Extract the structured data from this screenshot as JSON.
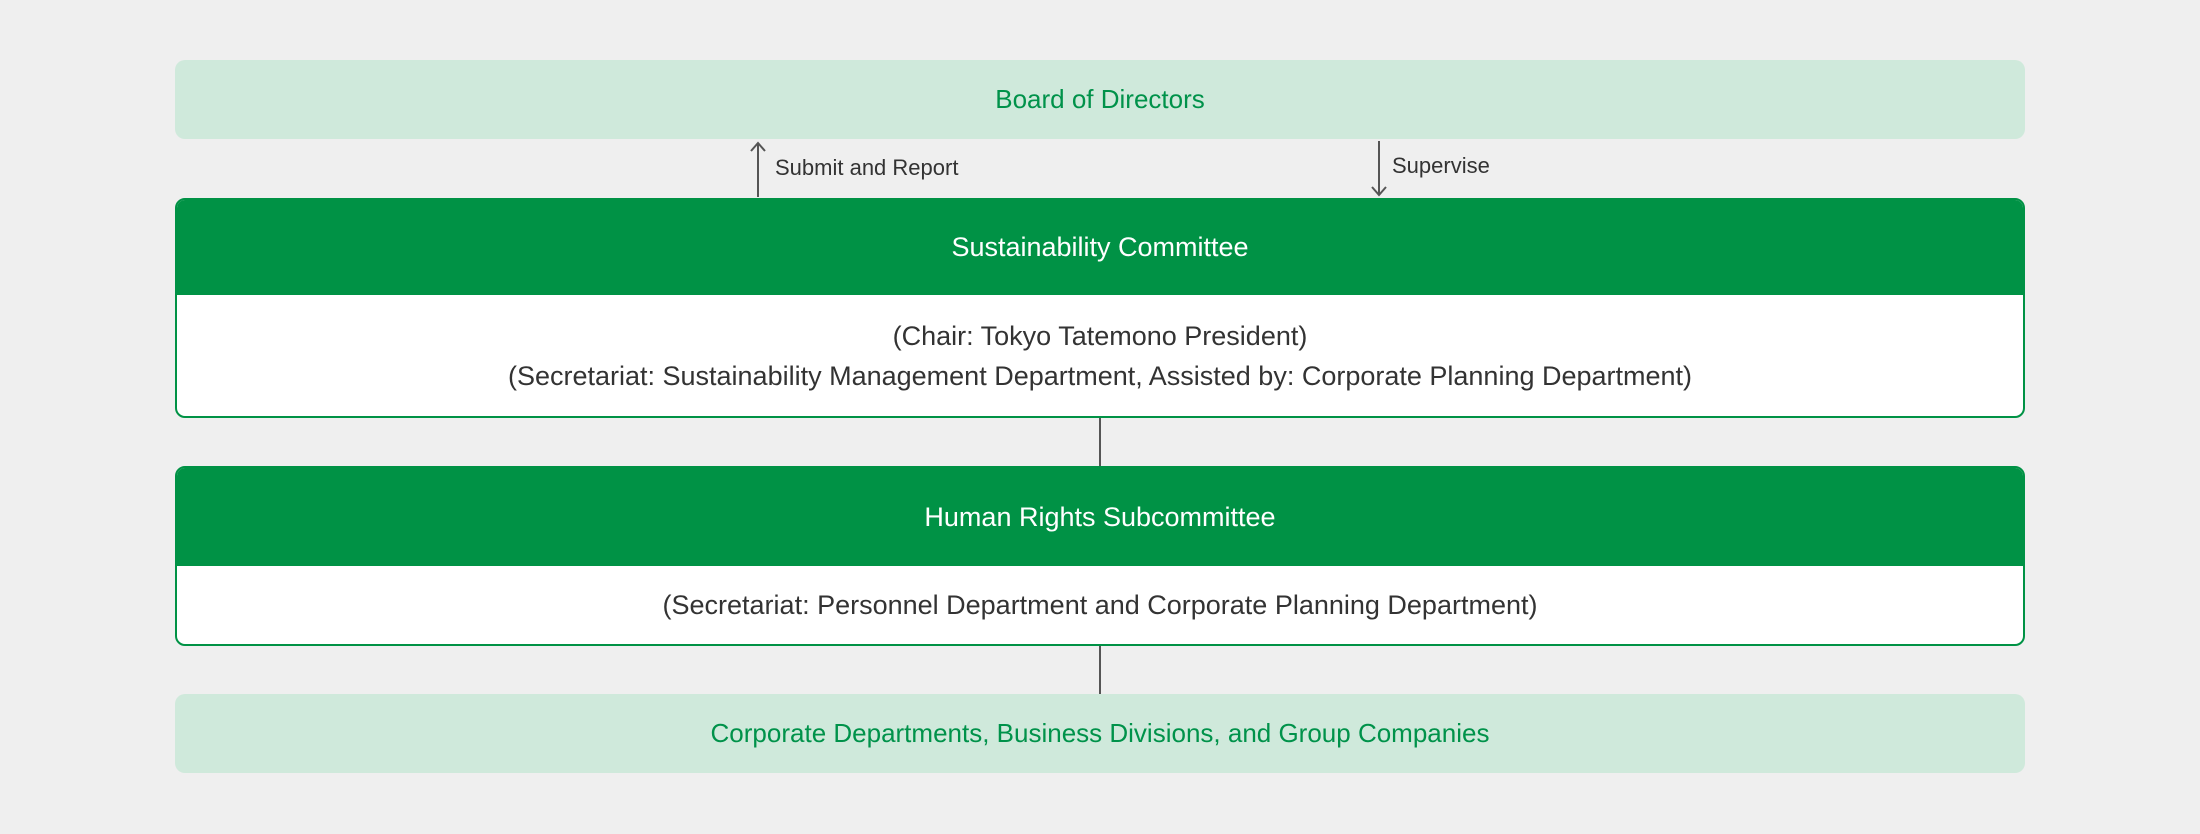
{
  "board": {
    "label": "Board of Directors"
  },
  "arrows": {
    "up_label": "Submit and Report",
    "down_label": "Supervise"
  },
  "sustainability_committee": {
    "title": "Sustainability Committee",
    "lines": [
      "(Chair: Tokyo Tatemono President)",
      "(Secretariat: Sustainability Management Department, Assisted by: Corporate Planning Department)"
    ]
  },
  "human_rights_subcommittee": {
    "title": "Human Rights Subcommittee",
    "lines": [
      "(Secretariat: Personnel Department and Corporate Planning Department)"
    ]
  },
  "bottom": {
    "label": "Corporate Departments, Business Divisions, and Group Companies"
  },
  "colors": {
    "green": "#009245",
    "light_green": "#cfe9db",
    "background": "#efefef",
    "text": "#333333"
  }
}
